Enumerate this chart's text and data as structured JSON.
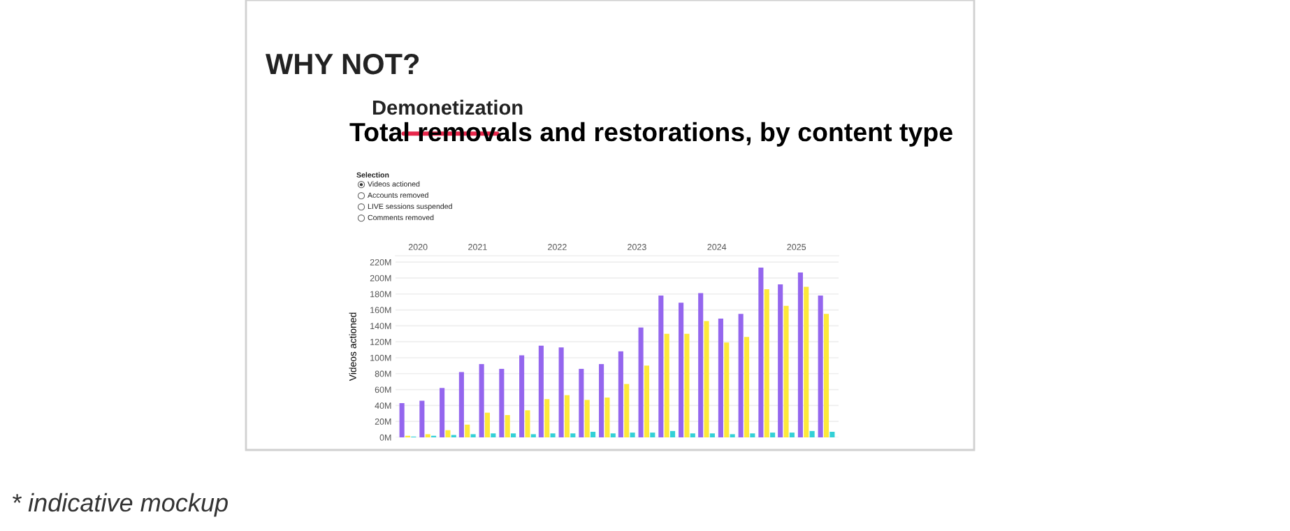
{
  "chart_data": {
    "type": "bar",
    "title": "Total removals and restorations, by content type",
    "ylabel": "Videos actioned",
    "annotations": [
      "WHY NOT?",
      "Demonetization",
      "Selection",
      "Videos actioned",
      "Accounts removed",
      "LIVE sessions suspended",
      "Comments removed",
      "* indicative mockup"
    ],
    "x": [
      "2020-08-15",
      "2020-11-15",
      "2021-02-15",
      "2021-05-15",
      "2021-08-15",
      "2021-11-15",
      "2022-02-15",
      "2022-05-15",
      "2022-08-15",
      "2022-11-15",
      "2023-02-15",
      "2023-05-15",
      "2023-08-15",
      "2023-11-15",
      "2024-02-15",
      "2024-05-15",
      "2024-08-15",
      "2024-11-15",
      "2025-02-15",
      "2025-05-15",
      "2025-08-15",
      "2025-11-15"
    ],
    "series": [
      {
        "color": "#9466ee",
        "values": [
          43,
          46,
          62,
          82,
          92,
          86,
          103,
          115,
          113,
          86,
          92,
          108,
          138,
          178,
          169,
          181,
          149,
          155,
          213,
          192,
          207,
          178
        ]
      },
      {
        "color": "#fde83a",
        "values": [
          2,
          4,
          9,
          16,
          31,
          28,
          34,
          48,
          53,
          47,
          50,
          67,
          90,
          130,
          130,
          146,
          119,
          126,
          186,
          165,
          189,
          155
        ]
      },
      {
        "color": "#33d0d6",
        "values": [
          1,
          2,
          3,
          4,
          5,
          5,
          4,
          5,
          5,
          7,
          5,
          6,
          6,
          8,
          5,
          5,
          4,
          5,
          6,
          6,
          8,
          7
        ]
      }
    ],
    "xlim": [
      "2020-06-20",
      "2026-01-10"
    ],
    "xticks": [
      {
        "value": "2020-10-01",
        "label": "2020"
      },
      {
        "value": "2021-07-01",
        "label": "2021"
      },
      {
        "value": "2022-07-01",
        "label": "2022"
      },
      {
        "value": "2023-07-01",
        "label": "2023"
      },
      {
        "value": "2024-07-01",
        "label": "2024"
      },
      {
        "value": "2025-07-01",
        "label": "2025"
      }
    ],
    "ylim": [
      0,
      228
    ],
    "yticks": [
      {
        "value": 0,
        "label": "0M"
      },
      {
        "value": 20,
        "label": "20M"
      },
      {
        "value": 40,
        "label": "40M"
      },
      {
        "value": 60,
        "label": "60M"
      },
      {
        "value": 80,
        "label": "80M"
      },
      {
        "value": 100,
        "label": "100M"
      },
      {
        "value": 120,
        "label": "120M"
      },
      {
        "value": 140,
        "label": "140M"
      },
      {
        "value": 160,
        "label": "160M"
      },
      {
        "value": 180,
        "label": "180M"
      },
      {
        "value": 200,
        "label": "200M"
      },
      {
        "value": 220,
        "label": "220M"
      }
    ],
    "grid": "y",
    "legend": false
  }
}
